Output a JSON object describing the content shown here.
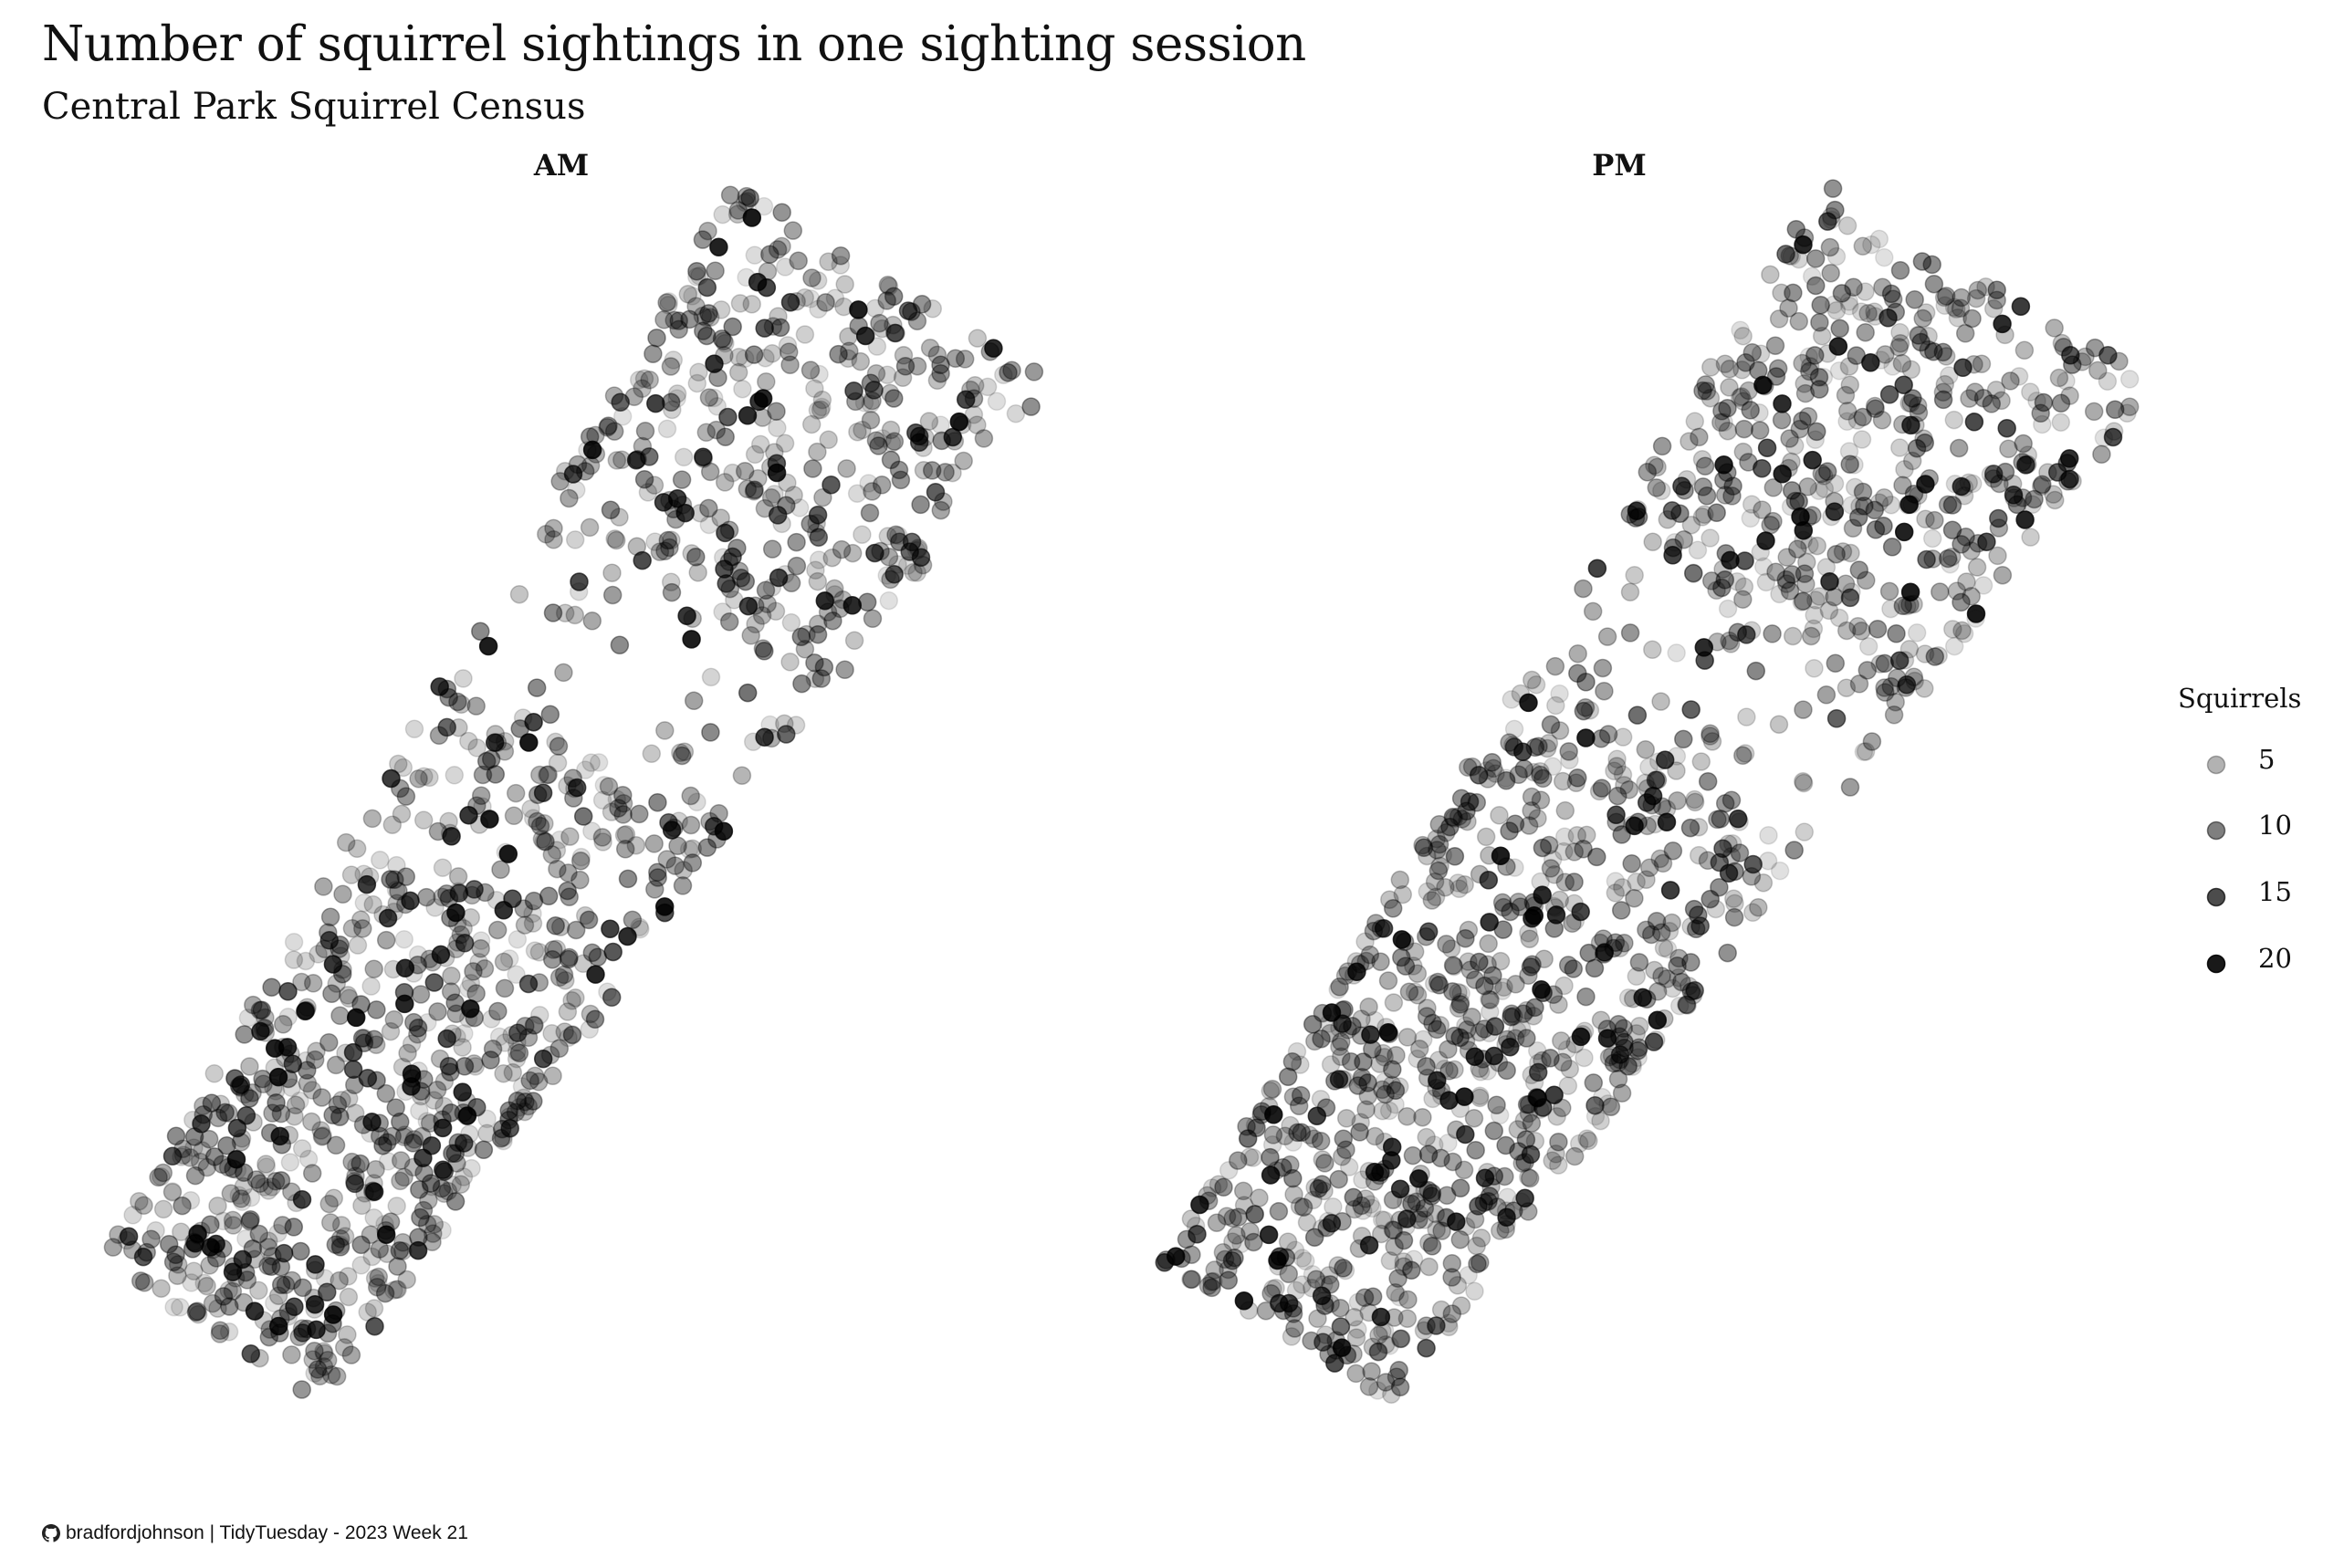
{
  "title": "Number of squirrel sightings in one sighting session",
  "subtitle": "Central Park Squirrel Census",
  "caption": {
    "icon": "github-icon",
    "text": "bradfordjohnson | TidyTuesday - 2023 Week 21"
  },
  "chart_data": {
    "type": "scatter",
    "facets": [
      "AM",
      "PM"
    ],
    "legend": {
      "title": "Squirrels",
      "placement": "right",
      "entries": [
        5,
        10,
        15,
        20
      ]
    },
    "point_color": "#000000",
    "encoding": "opacity proportional to squirrel count",
    "grid": false,
    "axes_visible": false
  }
}
